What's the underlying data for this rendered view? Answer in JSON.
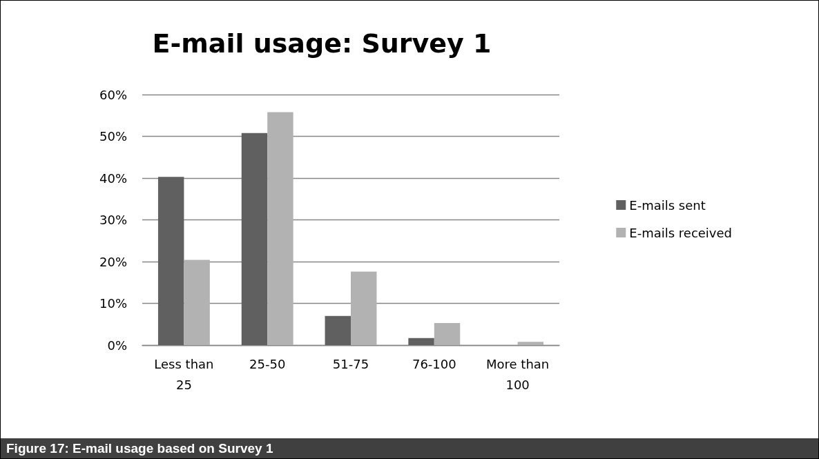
{
  "chart_data": {
    "type": "bar",
    "title": "E-mail usage: Survey 1",
    "categories": [
      "Less than 25",
      "25-50",
      "51-75",
      "76-100",
      "More than 100"
    ],
    "series": [
      {
        "name": "E-mails sent",
        "color": "#606060",
        "values": [
          40.3,
          50.8,
          7.0,
          1.7,
          0
        ]
      },
      {
        "name": "E-mails received",
        "color": "#b2b2b2",
        "values": [
          20.4,
          55.8,
          17.6,
          5.3,
          0.8
        ]
      }
    ],
    "ylim": [
      0,
      60
    ],
    "yticks": [
      {
        "value": 0,
        "label": "0%"
      },
      {
        "value": 10,
        "label": "10%"
      },
      {
        "value": 20,
        "label": "20%"
      },
      {
        "value": 30,
        "label": "30%"
      },
      {
        "value": 40,
        "label": "40%"
      },
      {
        "value": 50,
        "label": "50%"
      },
      {
        "value": 60,
        "label": "60%"
      }
    ],
    "grid": "y",
    "legend": "right",
    "annotations": [
      "Figure 17: E-mail usage based on Survey 1"
    ]
  }
}
